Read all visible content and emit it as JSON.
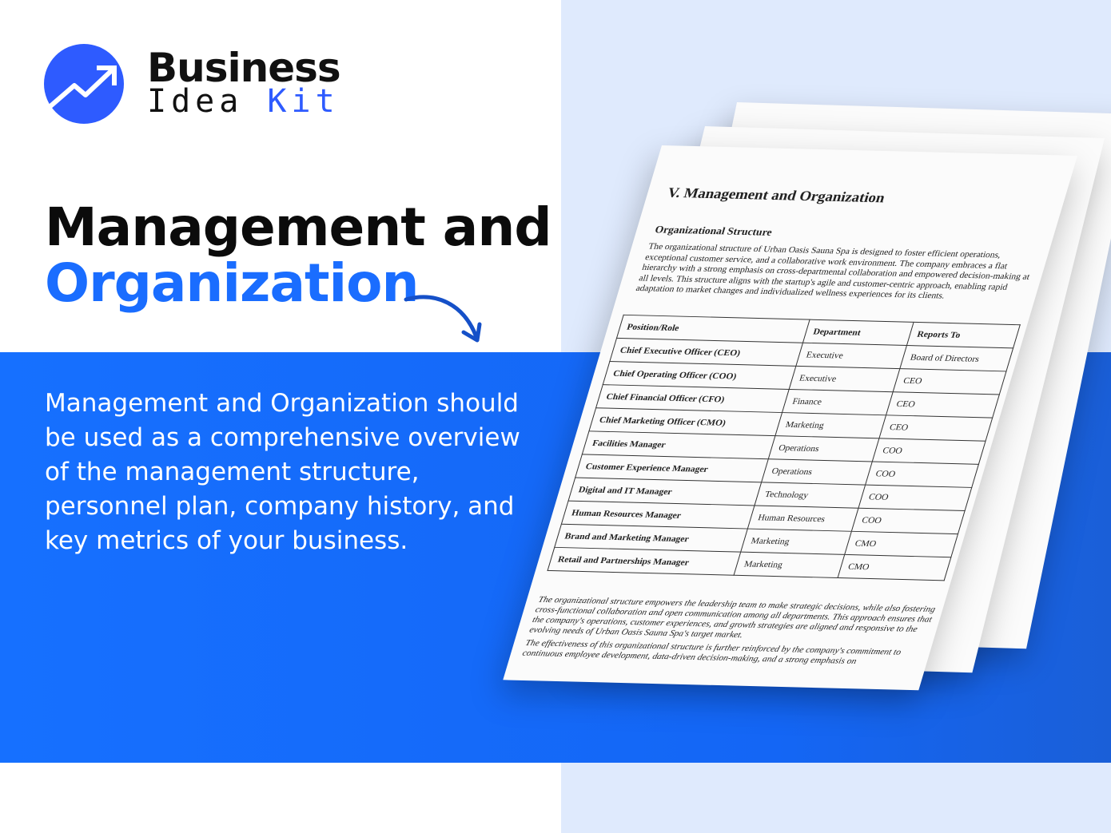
{
  "brand": {
    "line1": "Business",
    "line2a": "Idea",
    "line2b": "Kit",
    "accent": "#2e5bff"
  },
  "title": {
    "line1": "Management and",
    "line2": "Organization"
  },
  "description": "Management and Organization should be used as a comprehensive overview of the management structure, personnel plan, company history, and key metrics of your business.",
  "document": {
    "heading": "V. Management and Organization",
    "subheading": "Organizational Structure",
    "paragraph": "The organizational structure of Urban Oasis Sauna Spa is designed to foster efficient operations, exceptional customer service, and a collaborative work environment. The company embraces a flat hierarchy with a strong emphasis on cross-departmental collaboration and empowered decision-making at all levels. This structure aligns with the startup's agile and customer-centric approach, enabling rapid adaptation to market changes and individualized wellness experiences for its clients.",
    "table": {
      "headers": [
        "Position/Role",
        "Department",
        "Reports To"
      ],
      "rows": [
        [
          "Chief Executive Officer (CEO)",
          "Executive",
          "Board of Directors"
        ],
        [
          "Chief Operating Officer (COO)",
          "Executive",
          "CEO"
        ],
        [
          "Chief Financial Officer (CFO)",
          "Finance",
          "CEO"
        ],
        [
          "Chief Marketing Officer (CMO)",
          "Marketing",
          "CEO"
        ],
        [
          "Facilities Manager",
          "Operations",
          "COO"
        ],
        [
          "Customer Experience Manager",
          "Operations",
          "COO"
        ],
        [
          "Digital and IT Manager",
          "Technology",
          "COO"
        ],
        [
          "Human Resources Manager",
          "Human Resources",
          "COO"
        ],
        [
          "Brand and Marketing Manager",
          "Marketing",
          "CMO"
        ],
        [
          "Retail and Partnerships Manager",
          "Marketing",
          "CMO"
        ]
      ]
    },
    "footer1": "The organizational structure empowers the leadership team to make strategic decisions, while also fostering cross-functional collaboration and open communication among all departments. This approach ensures that the company's operations, customer experiences, and growth strategies are aligned and responsive to the evolving needs of Urban Oasis Sauna Spa's target market.",
    "footer2": "The effectiveness of this organizational structure is further reinforced by the company's commitment to continuous employee development, data-driven decision-making, and a strong emphasis on"
  }
}
